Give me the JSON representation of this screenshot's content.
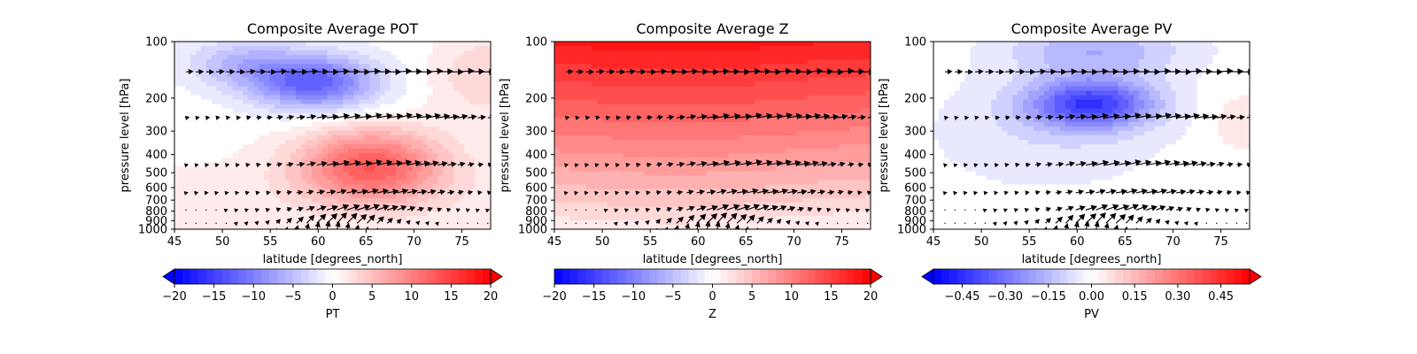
{
  "chart_data": [
    {
      "type": "heatmap",
      "title": "Composite Average POT",
      "xlabel": "latitude [degrees_north]",
      "ylabel": "pressure level [hPa]",
      "xlim": [
        45,
        78
      ],
      "xticks": [
        "45",
        "50",
        "55",
        "60",
        "65",
        "70",
        "75"
      ],
      "yticks": [
        "100",
        "200",
        "300",
        "400",
        "500",
        "600",
        "700",
        "800",
        "900",
        "1000"
      ],
      "y_scale": "log",
      "colormap": "bwr",
      "colorbar": {
        "label": "PT",
        "range": [
          -20,
          20
        ],
        "ticks": [
          "−20",
          "−15",
          "−10",
          "−5",
          "0",
          "5",
          "10",
          "15",
          "20"
        ],
        "extend": "both"
      },
      "features": [
        {
          "kind": "min",
          "lat": 59,
          "p": 170,
          "value": -12
        },
        {
          "kind": "max",
          "lat": 65,
          "p": 450,
          "value": 12
        }
      ],
      "vectors": "wind arrows on 6 pressure levels"
    },
    {
      "type": "heatmap",
      "title": "Composite Average Z",
      "xlabel": "latitude [degrees_north]",
      "ylabel": "pressure level [hPa]",
      "xlim": [
        45,
        78
      ],
      "xticks": [
        "45",
        "50",
        "55",
        "60",
        "65",
        "70",
        "75"
      ],
      "yticks": [
        "100",
        "200",
        "300",
        "400",
        "500",
        "600",
        "700",
        "800",
        "900",
        "1000"
      ],
      "y_scale": "log",
      "colormap": "bwr",
      "colorbar": {
        "label": "Z",
        "range": [
          -20,
          20
        ],
        "ticks": [
          "−20",
          "−15",
          "−10",
          "−5",
          "0",
          "5",
          "10",
          "15",
          "20"
        ],
        "extend": "max"
      },
      "features": [
        {
          "kind": "gradient",
          "top_value": 18,
          "bottom_value": 0
        }
      ],
      "vectors": "wind arrows on 6 pressure levels"
    },
    {
      "type": "heatmap",
      "title": "Composite Average PV",
      "xlabel": "latitude [degrees_north]",
      "ylabel": "pressure level [hPa]",
      "xlim": [
        45,
        78
      ],
      "xticks": [
        "45",
        "50",
        "55",
        "60",
        "65",
        "70",
        "75"
      ],
      "yticks": [
        "100",
        "200",
        "300",
        "400",
        "500",
        "600",
        "700",
        "800",
        "900",
        "1000"
      ],
      "y_scale": "log",
      "colormap": "bwr",
      "colorbar": {
        "label": "PV",
        "range": [
          -0.55,
          0.55
        ],
        "ticks": [
          "−0.45",
          "−0.30",
          "−0.15",
          "0.00",
          "0.15",
          "0.30",
          "0.45"
        ],
        "extend": "both"
      },
      "features": [
        {
          "kind": "min",
          "lat": 61,
          "p": 220,
          "value": -0.4
        },
        {
          "kind": "weak_max",
          "lat": 77,
          "p": 280,
          "value": 0.08
        }
      ],
      "vectors": "wind arrows on 6 pressure levels"
    }
  ]
}
